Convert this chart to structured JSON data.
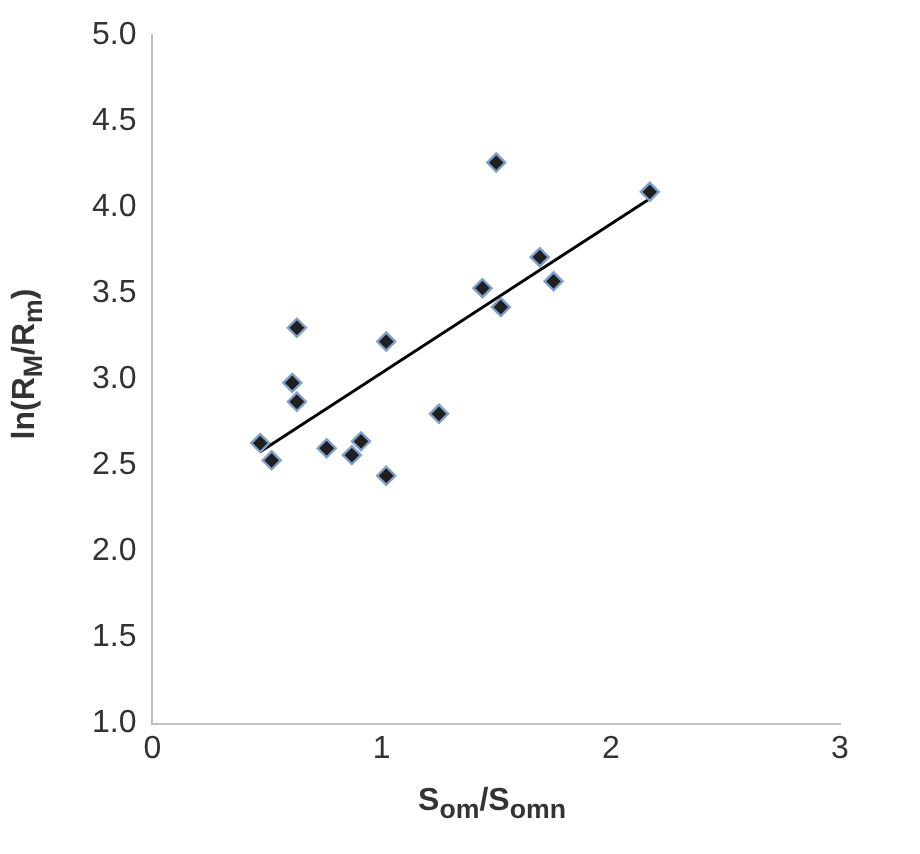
{
  "chart_data": {
    "type": "scatter",
    "xlabel": "S$_{om}$/S$_{omn}$",
    "ylabel": "ln(R$_{M}$/R$_{m}$)",
    "xlim": [
      0,
      3
    ],
    "xticks": [
      0,
      1,
      2,
      3
    ],
    "ylim": [
      1,
      5
    ],
    "yticks": [
      {
        "value": 1,
        "label": "1.0"
      },
      {
        "value": 1.5,
        "label": "1.5"
      },
      {
        "value": 2,
        "label": "2.0"
      },
      {
        "value": 2.5,
        "label": "2.5"
      },
      {
        "value": 3,
        "label": "3.0"
      },
      {
        "value": 3.5,
        "label": "3.5"
      },
      {
        "value": 4,
        "label": "4.0"
      },
      {
        "value": 4.5,
        "label": "4.5"
      },
      {
        "value": 5,
        "label": "5.0"
      }
    ],
    "grid": false,
    "legend": false,
    "marker": "diamond",
    "series": [
      {
        "color": "#1f1f1f",
        "x": [
          0.47,
          0.52,
          0.63,
          0.61,
          0.63,
          0.76,
          0.87,
          0.91,
          1.02,
          1.02,
          1.25,
          1.44,
          1.5,
          1.52,
          1.69,
          1.75,
          2.17
        ],
        "values": [
          2.63,
          2.53,
          3.3,
          2.98,
          2.87,
          2.6,
          2.56,
          2.64,
          3.22,
          2.44,
          2.8,
          3.53,
          4.26,
          3.42,
          3.71,
          3.57,
          4.09
        ]
      },
      {
        "type": "line",
        "color": "#000000",
        "marker": "none",
        "x": [
          0.47,
          2.17
        ],
        "values": [
          2.58,
          4.05
        ]
      }
    ]
  }
}
